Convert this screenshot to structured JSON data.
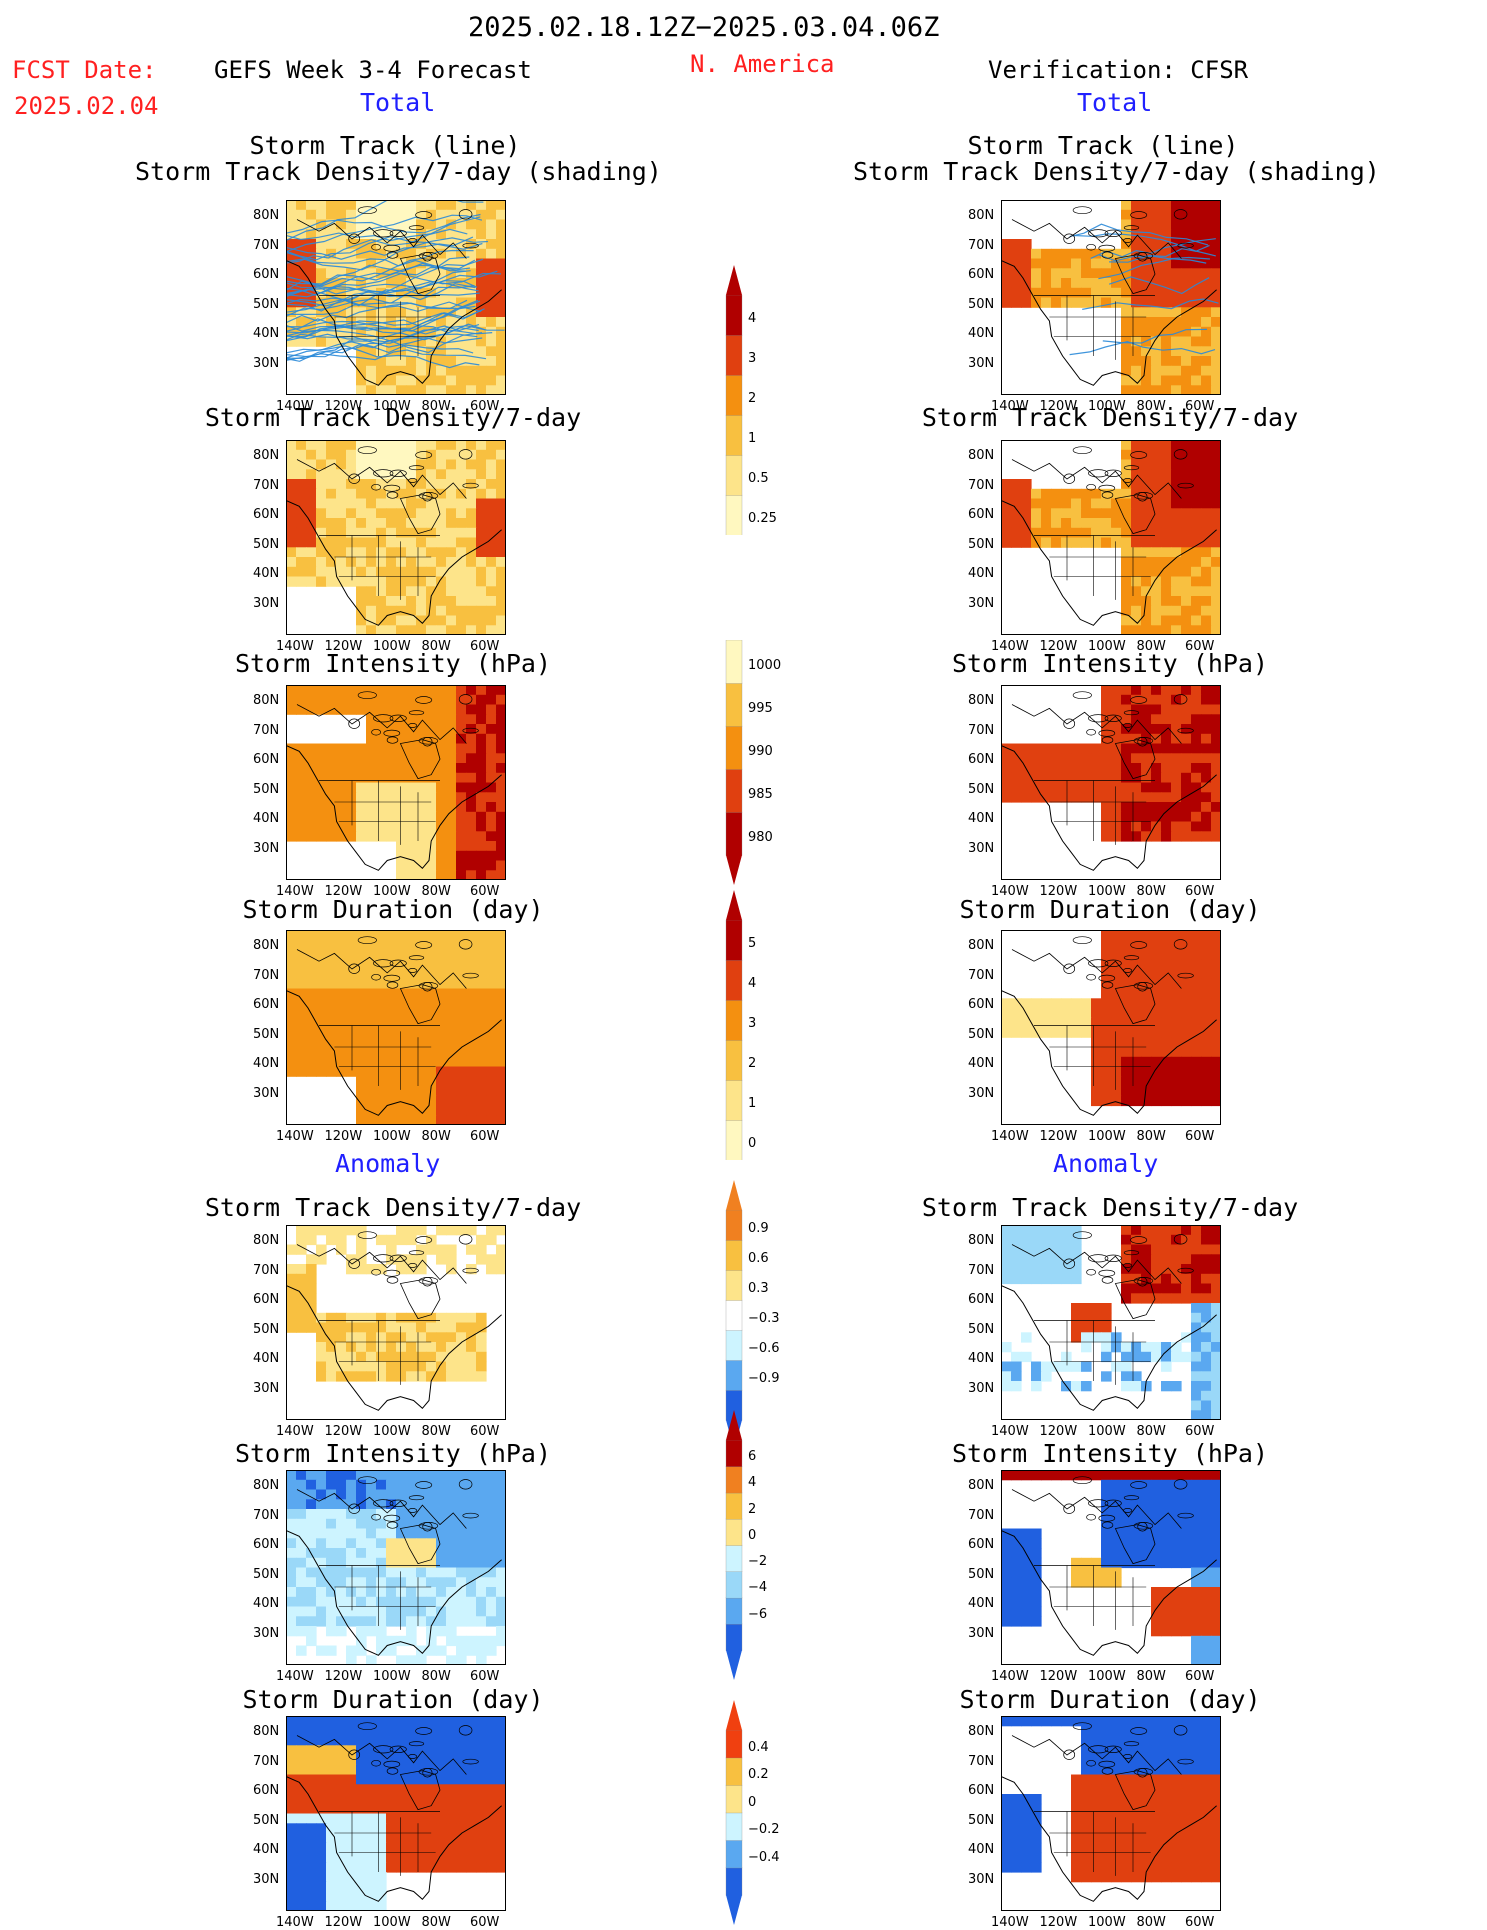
{
  "header": {
    "date_range": "2025.02.18.12Z−2025.03.04.06Z",
    "fcst_label": "FCST Date:",
    "fcst_date": "2025.02.04",
    "forecast_title": "GEFS Week 3-4 Forecast",
    "region": "N. America",
    "verification_title": "Verification: CFSR"
  },
  "sections": {
    "total": "Total",
    "anomaly": "Anomaly"
  },
  "panel_titles": {
    "track_line": "Storm Track (line)",
    "track_shading": "Storm Track Density/7-day (shading)",
    "density": "Storm Track Density/7-day",
    "intensity": "Storm Intensity (hPa)",
    "duration": "Storm Duration (day)"
  },
  "axes": {
    "lat_labels": [
      "80N",
      "70N",
      "60N",
      "50N",
      "40N",
      "30N"
    ],
    "lon_labels": [
      "140W",
      "120W",
      "100W",
      "80W",
      "60W"
    ]
  },
  "colorbars": {
    "density_total": [
      "4",
      "3",
      "2",
      "1",
      "0.5",
      "0.25"
    ],
    "intensity_total": [
      "1000",
      "995",
      "990",
      "985",
      "980"
    ],
    "duration_total": [
      "5",
      "4",
      "3",
      "2",
      "1",
      "0"
    ],
    "density_anom": [
      "0.9",
      "0.6",
      "0.3",
      "−0.3",
      "−0.6",
      "−0.9"
    ],
    "intensity_anom": [
      "6",
      "4",
      "2",
      "0",
      "−2",
      "−4",
      "−6"
    ],
    "duration_anom": [
      "0.4",
      "0.2",
      "0",
      "−0.2",
      "−0.4"
    ]
  },
  "colors": {
    "warm_scale": [
      "#fff8c0",
      "#fde48a",
      "#f8c040",
      "#f49010",
      "#e04010",
      "#b00000"
    ],
    "cool_scale": [
      "#cdf4ff",
      "#9ad8f8",
      "#5aa8f0",
      "#2060e0"
    ],
    "track_line": "#2a8ad8"
  }
}
